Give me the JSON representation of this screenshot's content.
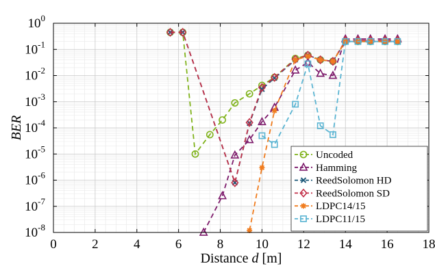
{
  "chart_data": {
    "type": "line",
    "xlabel": {
      "prefix": "Distance ",
      "var": "d",
      "unit": " [m]"
    },
    "ylabel": "BER",
    "xlim": [
      0,
      18
    ],
    "ylim": [
      1e-08,
      1
    ],
    "yscale": "log",
    "grid": true,
    "legend_position": "bottom-right",
    "x_ticks": [
      "0",
      "2",
      "4",
      "6",
      "8",
      "10",
      "12",
      "14",
      "16",
      "18"
    ],
    "y_ticks": [
      {
        "base": "10",
        "exp": "0"
      },
      {
        "base": "10",
        "exp": "-1"
      },
      {
        "base": "10",
        "exp": "-2"
      },
      {
        "base": "10",
        "exp": "-3"
      },
      {
        "base": "10",
        "exp": "-4"
      },
      {
        "base": "10",
        "exp": "-5"
      },
      {
        "base": "10",
        "exp": "-6"
      },
      {
        "base": "10",
        "exp": "-7"
      },
      {
        "base": "10",
        "exp": "-8"
      }
    ],
    "series": [
      {
        "name": "Uncoded",
        "color": "#7fb21a",
        "marker": "circle",
        "dash": "7,5",
        "points": [
          [
            5.6,
            0.45
          ],
          [
            6.2,
            0.45
          ],
          [
            6.8,
            1e-05
          ],
          [
            7.5,
            5.5e-05
          ],
          [
            8.1,
            0.0002
          ],
          [
            8.7,
            0.0009
          ],
          [
            9.4,
            0.002
          ],
          [
            10.0,
            0.0042
          ],
          [
            10.6,
            0.0085
          ],
          [
            11.6,
            0.045
          ],
          [
            12.2,
            0.06
          ],
          [
            12.8,
            0.04
          ],
          [
            13.4,
            0.035
          ],
          [
            14.0,
            0.2
          ],
          [
            14.6,
            0.2
          ],
          [
            15.2,
            0.2
          ],
          [
            15.9,
            0.2
          ],
          [
            16.5,
            0.2
          ]
        ]
      },
      {
        "name": "Hamming",
        "color": "#7d1a6b",
        "marker": "triangle",
        "dash": "7,5",
        "points": [
          [
            7.2,
            1e-08
          ],
          [
            8.1,
            2.5e-07
          ],
          [
            8.7,
            9e-06
          ],
          [
            9.4,
            3.5e-05
          ],
          [
            10.0,
            0.00017
          ],
          [
            10.6,
            0.0006
          ],
          [
            11.6,
            0.016
          ],
          [
            12.2,
            0.032
          ],
          [
            12.8,
            0.012
          ],
          [
            13.4,
            0.01
          ],
          [
            14.0,
            0.25
          ],
          [
            14.6,
            0.25
          ],
          [
            15.2,
            0.25
          ],
          [
            15.9,
            0.25
          ],
          [
            16.5,
            0.25
          ]
        ]
      },
      {
        "name": "ReedSolomon HD",
        "color": "#1f5a7a",
        "marker": "x",
        "dash": "7,5",
        "points": [
          [
            5.6,
            0.45
          ],
          [
            6.2,
            0.45
          ],
          [
            8.7,
            8e-07
          ],
          [
            9.4,
            0.00015
          ],
          [
            10.0,
            0.003
          ],
          [
            10.6,
            0.008
          ],
          [
            11.6,
            0.04
          ],
          [
            12.2,
            0.06
          ],
          [
            12.8,
            0.04
          ],
          [
            13.4,
            0.035
          ],
          [
            14.0,
            0.2
          ],
          [
            14.6,
            0.2
          ],
          [
            15.2,
            0.2
          ],
          [
            15.9,
            0.2
          ],
          [
            16.5,
            0.2
          ]
        ]
      },
      {
        "name": "ReedSolomon SD",
        "color": "#c23048",
        "marker": "diamond",
        "dash": "7,5",
        "points": [
          [
            5.6,
            0.45
          ],
          [
            6.2,
            0.45
          ],
          [
            8.7,
            8e-07
          ],
          [
            9.4,
            0.00016
          ],
          [
            10.0,
            0.0035
          ],
          [
            10.6,
            0.0085
          ],
          [
            11.6,
            0.042
          ],
          [
            12.2,
            0.06
          ],
          [
            12.8,
            0.04
          ],
          [
            13.4,
            0.035
          ],
          [
            14.0,
            0.22
          ],
          [
            14.6,
            0.22
          ],
          [
            15.2,
            0.22
          ],
          [
            15.9,
            0.22
          ],
          [
            16.5,
            0.22
          ]
        ]
      },
      {
        "name": "LDPC14/15",
        "color": "#f07c1e",
        "marker": "asterisk",
        "dash": "7,5",
        "points": [
          [
            9.4,
            1.2e-08
          ],
          [
            10.0,
            3e-06
          ],
          [
            10.6,
            0.00045
          ],
          [
            11.6,
            0.04
          ],
          [
            12.2,
            0.055
          ],
          [
            12.8,
            0.04
          ],
          [
            13.4,
            0.035
          ],
          [
            14.0,
            0.2
          ],
          [
            14.6,
            0.2
          ],
          [
            15.2,
            0.2
          ],
          [
            15.9,
            0.2
          ],
          [
            16.5,
            0.2
          ]
        ]
      },
      {
        "name": "LDPC11/15",
        "color": "#5ab4d2",
        "marker": "square",
        "dash": "7,5",
        "points": [
          [
            10.0,
            5e-05
          ],
          [
            10.6,
            2.3e-05
          ],
          [
            11.6,
            0.0008
          ],
          [
            12.2,
            0.028
          ],
          [
            12.8,
            0.00012
          ],
          [
            13.4,
            5.5e-05
          ],
          [
            14.0,
            0.2
          ],
          [
            14.6,
            0.2
          ],
          [
            15.2,
            0.2
          ],
          [
            15.9,
            0.2
          ],
          [
            16.5,
            0.2
          ]
        ]
      }
    ]
  }
}
